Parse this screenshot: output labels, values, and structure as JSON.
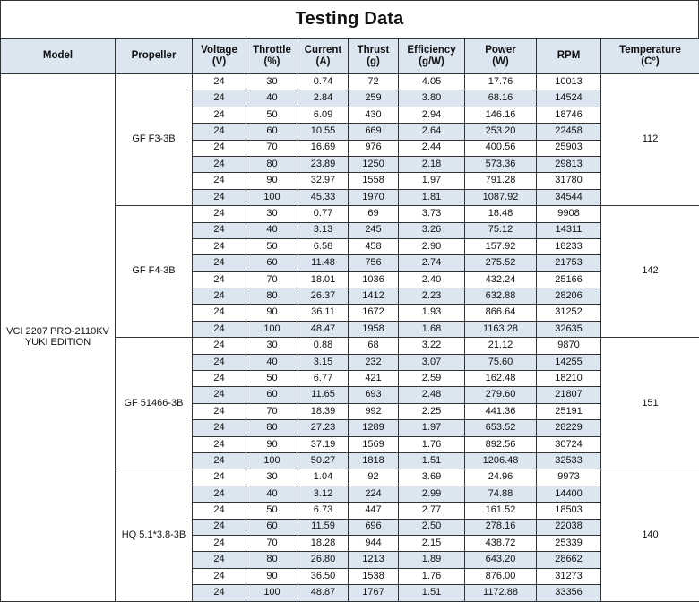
{
  "title": "Testing Data",
  "headers": [
    {
      "l1": "Model",
      "l2": ""
    },
    {
      "l1": "Propeller",
      "l2": ""
    },
    {
      "l1": "Voltage",
      "l2": "(V)"
    },
    {
      "l1": "Throttle",
      "l2": "(%)"
    },
    {
      "l1": "Current",
      "l2": "(A)"
    },
    {
      "l1": "Thrust",
      "l2": "(g)"
    },
    {
      "l1": "Efficiency",
      "l2": "(g/W)"
    },
    {
      "l1": "Power",
      "l2": "(W)"
    },
    {
      "l1": "RPM",
      "l2": ""
    },
    {
      "l1": "Temperature",
      "l2": "(C°)"
    }
  ],
  "model": {
    "line1": "VCI 2207 PRO-2110KV",
    "line2": "YUKI EDITION"
  },
  "groups": [
    {
      "propeller": "GF F3-3B",
      "temperature": "112",
      "rows": [
        [
          "24",
          "30",
          "0.74",
          "72",
          "4.05",
          "17.76",
          "10013"
        ],
        [
          "24",
          "40",
          "2.84",
          "259",
          "3.80",
          "68.16",
          "14524"
        ],
        [
          "24",
          "50",
          "6.09",
          "430",
          "2.94",
          "146.16",
          "18746"
        ],
        [
          "24",
          "60",
          "10.55",
          "669",
          "2.64",
          "253.20",
          "22458"
        ],
        [
          "24",
          "70",
          "16.69",
          "976",
          "2.44",
          "400.56",
          "25903"
        ],
        [
          "24",
          "80",
          "23.89",
          "1250",
          "2.18",
          "573.36",
          "29813"
        ],
        [
          "24",
          "90",
          "32.97",
          "1558",
          "1.97",
          "791.28",
          "31780"
        ],
        [
          "24",
          "100",
          "45.33",
          "1970",
          "1.81",
          "1087.92",
          "34544"
        ]
      ]
    },
    {
      "propeller": "GF F4-3B",
      "temperature": "142",
      "rows": [
        [
          "24",
          "30",
          "0.77",
          "69",
          "3.73",
          "18.48",
          "9908"
        ],
        [
          "24",
          "40",
          "3.13",
          "245",
          "3.26",
          "75.12",
          "14311"
        ],
        [
          "24",
          "50",
          "6.58",
          "458",
          "2.90",
          "157.92",
          "18233"
        ],
        [
          "24",
          "60",
          "11.48",
          "756",
          "2.74",
          "275.52",
          "21753"
        ],
        [
          "24",
          "70",
          "18.01",
          "1036",
          "2.40",
          "432.24",
          "25166"
        ],
        [
          "24",
          "80",
          "26.37",
          "1412",
          "2.23",
          "632.88",
          "28206"
        ],
        [
          "24",
          "90",
          "36.11",
          "1672",
          "1.93",
          "866.64",
          "31252"
        ],
        [
          "24",
          "100",
          "48.47",
          "1958",
          "1.68",
          "1163.28",
          "32635"
        ]
      ]
    },
    {
      "propeller": "GF 51466-3B",
      "temperature": "151",
      "rows": [
        [
          "24",
          "30",
          "0.88",
          "68",
          "3.22",
          "21.12",
          "9870"
        ],
        [
          "24",
          "40",
          "3.15",
          "232",
          "3.07",
          "75.60",
          "14255"
        ],
        [
          "24",
          "50",
          "6.77",
          "421",
          "2.59",
          "162.48",
          "18210"
        ],
        [
          "24",
          "60",
          "11.65",
          "693",
          "2.48",
          "279.60",
          "21807"
        ],
        [
          "24",
          "70",
          "18.39",
          "992",
          "2.25",
          "441.36",
          "25191"
        ],
        [
          "24",
          "80",
          "27.23",
          "1289",
          "1.97",
          "653.52",
          "28229"
        ],
        [
          "24",
          "90",
          "37.19",
          "1569",
          "1.76",
          "892.56",
          "30724"
        ],
        [
          "24",
          "100",
          "50.27",
          "1818",
          "1.51",
          "1206.48",
          "32533"
        ]
      ]
    },
    {
      "propeller": "HQ 5.1*3.8-3B",
      "temperature": "140",
      "rows": [
        [
          "24",
          "30",
          "1.04",
          "92",
          "3.69",
          "24.96",
          "9973"
        ],
        [
          "24",
          "40",
          "3.12",
          "224",
          "2.99",
          "74.88",
          "14400"
        ],
        [
          "24",
          "50",
          "6.73",
          "447",
          "2.77",
          "161.52",
          "18503"
        ],
        [
          "24",
          "60",
          "11.59",
          "696",
          "2.50",
          "278.16",
          "22038"
        ],
        [
          "24",
          "70",
          "18.28",
          "944",
          "2.15",
          "438.72",
          "25339"
        ],
        [
          "24",
          "80",
          "26.80",
          "1213",
          "1.89",
          "643.20",
          "28662"
        ],
        [
          "24",
          "90",
          "36.50",
          "1538",
          "1.76",
          "876.00",
          "31273"
        ],
        [
          "24",
          "100",
          "48.87",
          "1767",
          "1.51",
          "1172.88",
          "33356"
        ]
      ]
    }
  ],
  "colors": {
    "header_bg": "#dce6f1",
    "stripe_bg": "#dce6f1",
    "border": "#333333"
  }
}
